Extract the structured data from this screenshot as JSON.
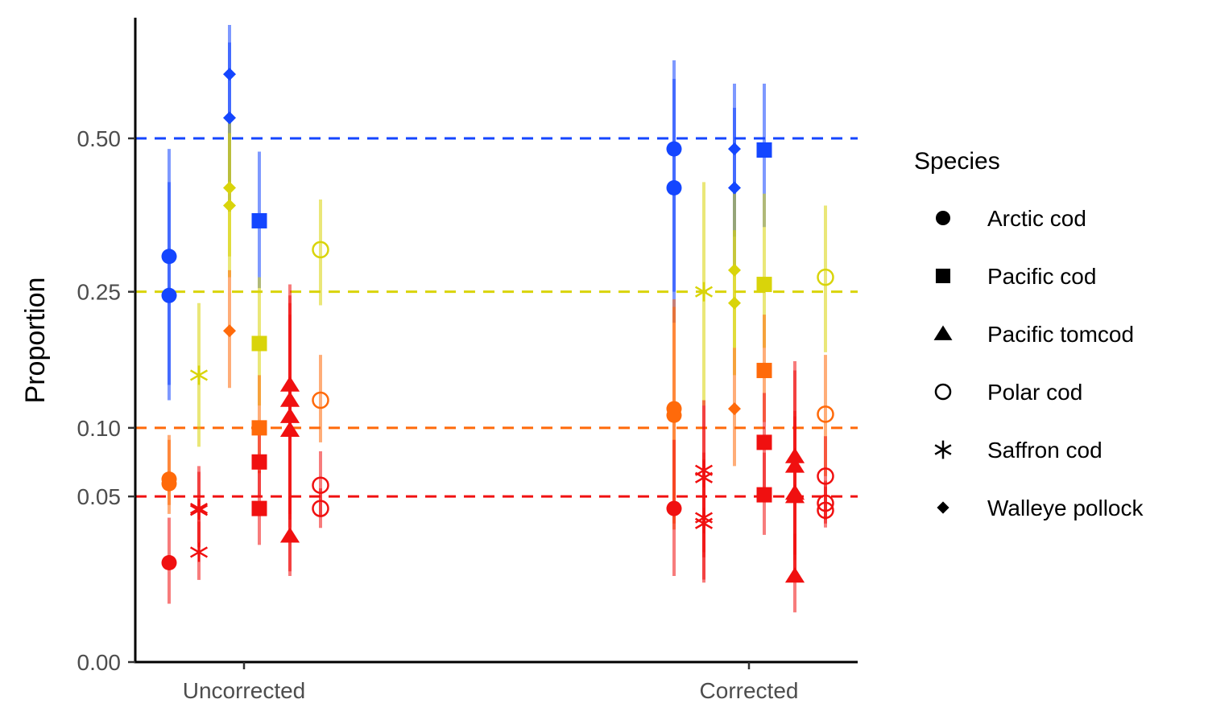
{
  "chart_data": {
    "type": "scatter",
    "title": "",
    "xlabel": "",
    "ylabel": "Proportion",
    "categories": [
      "Uncorrected",
      "Corrected"
    ],
    "y_scale": "sqrt",
    "yticks": [
      0.0,
      0.05,
      0.1,
      0.25,
      0.5
    ],
    "ytick_labels": [
      "0.00",
      "0.05",
      "0.10",
      "0.25",
      "0.50"
    ],
    "ylim": [
      0,
      0.74
    ],
    "grid": false,
    "legend": {
      "title": "Species",
      "position": "right",
      "entries": [
        {
          "label": "Arctic cod",
          "shape": "circle"
        },
        {
          "label": "Pacific cod",
          "shape": "square"
        },
        {
          "label": "Pacific tomcod",
          "shape": "triangle"
        },
        {
          "label": "Polar cod",
          "shape": "open-circle"
        },
        {
          "label": "Saffron cod",
          "shape": "asterisk"
        },
        {
          "label": "Walleye pollock",
          "shape": "diamond"
        }
      ]
    },
    "reference_lines": [
      {
        "y": 0.5,
        "color": "#1446ff"
      },
      {
        "y": 0.25,
        "color": "#d9d40a"
      },
      {
        "y": 0.1,
        "color": "#ff6a0a"
      },
      {
        "y": 0.05,
        "color": "#f01010"
      }
    ],
    "points": [
      {
        "group": "Uncorrected",
        "species": "Arctic cod",
        "color": "#1446ff",
        "y": 0.3,
        "lo": 0.125,
        "hi": 0.48
      },
      {
        "group": "Uncorrected",
        "species": "Arctic cod",
        "color": "#1446ff",
        "y": 0.245,
        "lo": 0.14,
        "hi": 0.42
      },
      {
        "group": "Uncorrected",
        "species": "Arctic cod",
        "color": "#ff6a0a",
        "y": 0.061,
        "lo": 0.045,
        "hi": 0.094
      },
      {
        "group": "Uncorrected",
        "species": "Arctic cod",
        "color": "#ff6a0a",
        "y": 0.058,
        "lo": 0.04,
        "hi": 0.09
      },
      {
        "group": "Uncorrected",
        "species": "Arctic cod",
        "color": "#f01010",
        "y": 0.018,
        "lo": 0.0062,
        "hi": 0.038
      },
      {
        "group": "Uncorrected",
        "species": "Saffron cod",
        "color": "#d9d40a",
        "y": 0.15,
        "lo": 0.0845,
        "hi": 0.235
      },
      {
        "group": "Uncorrected",
        "species": "Saffron cod",
        "color": "#f01010",
        "y": 0.042,
        "lo": 0.024,
        "hi": 0.066
      },
      {
        "group": "Uncorrected",
        "species": "Saffron cod",
        "color": "#f01010",
        "y": 0.043,
        "lo": 0.026,
        "hi": 0.07
      },
      {
        "group": "Uncorrected",
        "species": "Saffron cod",
        "color": "#f01010",
        "y": 0.022,
        "lo": 0.0123,
        "hi": 0.036
      },
      {
        "group": "Uncorrected",
        "species": "Walleye pollock",
        "color": "#1446ff",
        "y": 0.63,
        "lo": 0.42,
        "hi": 0.74
      },
      {
        "group": "Uncorrected",
        "species": "Walleye pollock",
        "color": "#1446ff",
        "y": 0.54,
        "lo": 0.37,
        "hi": 0.7
      },
      {
        "group": "Uncorrected",
        "species": "Walleye pollock",
        "color": "#d9d40a",
        "y": 0.41,
        "lo": 0.3,
        "hi": 0.53
      },
      {
        "group": "Uncorrected",
        "species": "Walleye pollock",
        "color": "#d9d40a",
        "y": 0.38,
        "lo": 0.27,
        "hi": 0.51
      },
      {
        "group": "Uncorrected",
        "species": "Walleye pollock",
        "color": "#ff6a0a",
        "y": 0.2,
        "lo": 0.137,
        "hi": 0.28
      },
      {
        "group": "Uncorrected",
        "species": "Pacific cod",
        "color": "#1446ff",
        "y": 0.355,
        "lo": 0.255,
        "hi": 0.475
      },
      {
        "group": "Uncorrected",
        "species": "Pacific cod",
        "color": "#d9d40a",
        "y": 0.185,
        "lo": 0.12,
        "hi": 0.27
      },
      {
        "group": "Uncorrected",
        "species": "Pacific cod",
        "color": "#ff6a0a",
        "y": 0.1,
        "lo": 0.065,
        "hi": 0.15
      },
      {
        "group": "Uncorrected",
        "species": "Pacific cod",
        "color": "#f01010",
        "y": 0.073,
        "lo": 0.05,
        "hi": 0.106
      },
      {
        "group": "Uncorrected",
        "species": "Pacific cod",
        "color": "#f01010",
        "y": 0.043,
        "lo": 0.025,
        "hi": 0.067
      },
      {
        "group": "Uncorrected",
        "species": "Pacific tomcod",
        "color": "#f01010",
        "y": 0.14,
        "lo": 0.04,
        "hi": 0.26
      },
      {
        "group": "Uncorrected",
        "species": "Pacific tomcod",
        "color": "#f01010",
        "y": 0.125,
        "lo": 0.037,
        "hi": 0.245
      },
      {
        "group": "Uncorrected",
        "species": "Pacific tomcod",
        "color": "#f01010",
        "y": 0.11,
        "lo": 0.033,
        "hi": 0.235
      },
      {
        "group": "Uncorrected",
        "species": "Pacific tomcod",
        "color": "#f01010",
        "y": 0.098,
        "lo": 0.015,
        "hi": 0.22
      },
      {
        "group": "Uncorrected",
        "species": "Pacific tomcod",
        "color": "#f01010",
        "y": 0.029,
        "lo": 0.0135,
        "hi": 0.05
      },
      {
        "group": "Uncorrected",
        "species": "Polar cod",
        "color": "#d9d40a",
        "y": 0.31,
        "lo": 0.232,
        "hi": 0.39
      },
      {
        "group": "Uncorrected",
        "species": "Polar cod",
        "color": "#ff6a0a",
        "y": 0.125,
        "lo": 0.088,
        "hi": 0.172
      },
      {
        "group": "Uncorrected",
        "species": "Polar cod",
        "color": "#f01010",
        "y": 0.057,
        "lo": 0.039,
        "hi": 0.081
      },
      {
        "group": "Uncorrected",
        "species": "Polar cod",
        "color": "#f01010",
        "y": 0.043,
        "lo": 0.0328,
        "hi": 0.055
      },
      {
        "group": "Corrected",
        "species": "Arctic cod",
        "color": "#1446ff",
        "y": 0.48,
        "lo": 0.25,
        "hi": 0.66
      },
      {
        "group": "Corrected",
        "species": "Arctic cod",
        "color": "#1446ff",
        "y": 0.41,
        "lo": 0.21,
        "hi": 0.62
      },
      {
        "group": "Corrected",
        "species": "Arctic cod",
        "color": "#ff6a0a",
        "y": 0.117,
        "lo": 0.035,
        "hi": 0.24
      },
      {
        "group": "Corrected",
        "species": "Arctic cod",
        "color": "#ff6a0a",
        "y": 0.111,
        "lo": 0.032,
        "hi": 0.23
      },
      {
        "group": "Corrected",
        "species": "Arctic cod",
        "color": "#f01010",
        "y": 0.043,
        "lo": 0.0135,
        "hi": 0.09
      },
      {
        "group": "Corrected",
        "species": "Saffron cod",
        "color": "#d9d40a",
        "y": 0.25,
        "lo": 0.12,
        "hi": 0.42
      },
      {
        "group": "Corrected",
        "species": "Saffron cod",
        "color": "#f01010",
        "y": 0.067,
        "lo": 0.022,
        "hi": 0.125
      },
      {
        "group": "Corrected",
        "species": "Saffron cod",
        "color": "#f01010",
        "y": 0.062,
        "lo": 0.02,
        "hi": 0.12
      },
      {
        "group": "Corrected",
        "species": "Saffron cod",
        "color": "#f01010",
        "y": 0.038,
        "lo": 0.0124,
        "hi": 0.08
      },
      {
        "group": "Corrected",
        "species": "Saffron cod",
        "color": "#f01010",
        "y": 0.035,
        "lo": 0.0115,
        "hi": 0.075
      },
      {
        "group": "Corrected",
        "species": "Walleye pollock",
        "color": "#1446ff",
        "y": 0.48,
        "lo": 0.33,
        "hi": 0.61
      },
      {
        "group": "Corrected",
        "species": "Walleye pollock",
        "color": "#1446ff",
        "y": 0.41,
        "lo": 0.28,
        "hi": 0.56
      },
      {
        "group": "Corrected",
        "species": "Walleye pollock",
        "color": "#d9d40a",
        "y": 0.28,
        "lo": 0.18,
        "hi": 0.4
      },
      {
        "group": "Corrected",
        "species": "Walleye pollock",
        "color": "#d9d40a",
        "y": 0.235,
        "lo": 0.15,
        "hi": 0.34
      },
      {
        "group": "Corrected",
        "species": "Walleye pollock",
        "color": "#ff6a0a",
        "y": 0.117,
        "lo": 0.07,
        "hi": 0.18
      },
      {
        "group": "Corrected",
        "species": "Pacific cod",
        "color": "#1446ff",
        "y": 0.478,
        "lo": 0.345,
        "hi": 0.61
      },
      {
        "group": "Corrected",
        "species": "Pacific cod",
        "color": "#d9d40a",
        "y": 0.26,
        "lo": 0.18,
        "hi": 0.4
      },
      {
        "group": "Corrected",
        "species": "Pacific cod",
        "color": "#ff6a0a",
        "y": 0.155,
        "lo": 0.105,
        "hi": 0.22
      },
      {
        "group": "Corrected",
        "species": "Pacific cod",
        "color": "#f01010",
        "y": 0.088,
        "lo": 0.055,
        "hi": 0.132
      },
      {
        "group": "Corrected",
        "species": "Pacific cod",
        "color": "#f01010",
        "y": 0.051,
        "lo": 0.0295,
        "hi": 0.08
      },
      {
        "group": "Corrected",
        "species": "Pacific tomcod",
        "color": "#f01010",
        "y": 0.077,
        "lo": 0.021,
        "hi": 0.165
      },
      {
        "group": "Corrected",
        "species": "Pacific tomcod",
        "color": "#f01010",
        "y": 0.07,
        "lo": 0.019,
        "hi": 0.155
      },
      {
        "group": "Corrected",
        "species": "Pacific tomcod",
        "color": "#f01010",
        "y": 0.052,
        "lo": 0.015,
        "hi": 0.115
      },
      {
        "group": "Corrected",
        "species": "Pacific tomcod",
        "color": "#f01010",
        "y": 0.05,
        "lo": 0.014,
        "hi": 0.11
      },
      {
        "group": "Corrected",
        "species": "Pacific tomcod",
        "color": "#f01010",
        "y": 0.0135,
        "lo": 0.0045,
        "hi": 0.03
      },
      {
        "group": "Corrected",
        "species": "Polar cod",
        "color": "#d9d40a",
        "y": 0.27,
        "lo": 0.175,
        "hi": 0.38
      },
      {
        "group": "Corrected",
        "species": "Polar cod",
        "color": "#ff6a0a",
        "y": 0.112,
        "lo": 0.063,
        "hi": 0.172
      },
      {
        "group": "Corrected",
        "species": "Polar cod",
        "color": "#f01010",
        "y": 0.063,
        "lo": 0.037,
        "hi": 0.093
      },
      {
        "group": "Corrected",
        "species": "Polar cod",
        "color": "#f01010",
        "y": 0.046,
        "lo": 0.035,
        "hi": 0.06
      },
      {
        "group": "Corrected",
        "species": "Polar cod",
        "color": "#f01010",
        "y": 0.042,
        "lo": 0.033,
        "hi": 0.056
      }
    ]
  }
}
